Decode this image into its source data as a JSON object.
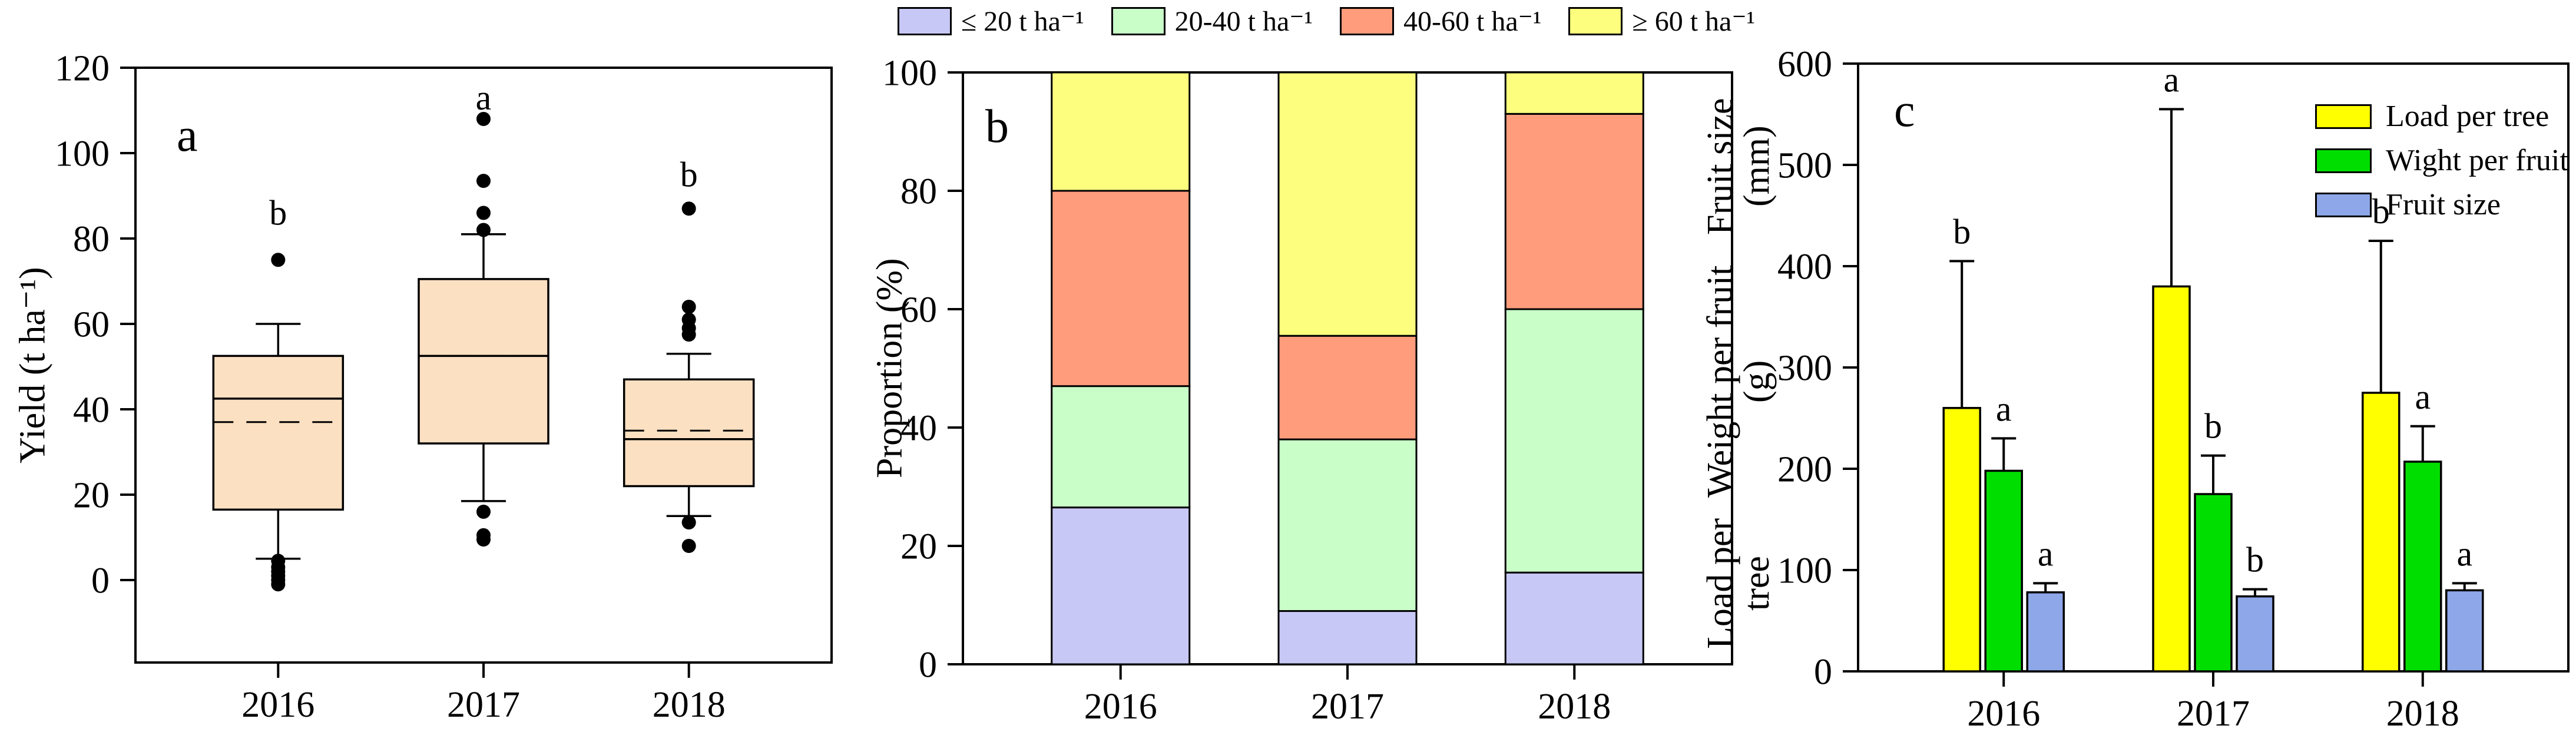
{
  "background": "#FFFFFF",
  "chart_data": [
    {
      "type": "boxplot",
      "panel_label": "a",
      "ylabel": "Yield (t ha⁻¹)",
      "ylim": [
        0,
        120
      ],
      "ytick_step": 20,
      "categories": [
        "2016",
        "2017",
        "2018"
      ],
      "box_fill": "#FCE0C2",
      "box_edge": "#000000",
      "boxes": [
        {
          "category": "2016",
          "whisker_low": 5,
          "q1": 16.5,
          "median": 42.5,
          "mean": 37,
          "q3": 52.5,
          "whisker_high": 60,
          "outliers_high": [
            75
          ],
          "outliers_low": [
            4.5,
            3,
            2,
            1,
            0,
            -1
          ],
          "sig": "b",
          "sig_y": 86
        },
        {
          "category": "2017",
          "whisker_low": 18.5,
          "q1": 32,
          "median": 52.5,
          "mean": 52.5,
          "q3": 70.5,
          "whisker_high": 81,
          "outliers_high": [
            82,
            86,
            93.5,
            108
          ],
          "outliers_low": [
            16,
            10.5,
            9.5
          ],
          "sig": "a",
          "sig_y": 113
        },
        {
          "category": "2018",
          "whisker_low": 15,
          "q1": 22,
          "median": 33,
          "mean": 35,
          "q3": 47,
          "whisker_high": 53,
          "outliers_high": [
            57.5,
            59,
            61,
            64,
            87
          ],
          "outliers_low": [
            13.5,
            8
          ],
          "sig": "b",
          "sig_y": 95
        }
      ]
    },
    {
      "type": "stacked_bar",
      "panel_label": "b",
      "ylabel": "Proportion (%)",
      "ylim": [
        0,
        100
      ],
      "ytick_step": 20,
      "categories": [
        "2016",
        "2017",
        "2018"
      ],
      "series": [
        {
          "name": "≤ 20 t ha⁻¹",
          "color": "#C8C8F6",
          "values": [
            26.5,
            9,
            15.5
          ]
        },
        {
          "name": "20-40 t ha⁻¹",
          "color": "#C9FEC9",
          "values": [
            20.5,
            29,
            44.5
          ]
        },
        {
          "name": "40-60 t ha⁻¹",
          "color": "#FF9C7C",
          "values": [
            33,
            17.5,
            33
          ]
        },
        {
          "name": "≥ 60 t ha⁻¹",
          "color": "#FDFD7E",
          "values": [
            20,
            44.5,
            7
          ]
        }
      ]
    },
    {
      "type": "grouped_bar",
      "panel_label": "c",
      "ylabel_lines": [
        "Load per tree",
        "Weight per fruit (g)",
        "Fruit size (mm)"
      ],
      "ylim": [
        0,
        600
      ],
      "ytick_step": 100,
      "categories": [
        "2016",
        "2017",
        "2018"
      ],
      "series": [
        {
          "name": "Load per tree",
          "color": "#FFFF00",
          "values": [
            260,
            380,
            275
          ],
          "err_top": [
            405,
            555,
            425
          ],
          "sig": [
            "b",
            "a",
            "b"
          ]
        },
        {
          "name": "Wight per fruit",
          "color": "#00DE00",
          "values": [
            198,
            175,
            207
          ],
          "err_top": [
            230,
            213,
            242
          ],
          "sig": [
            "a",
            "b",
            "a"
          ]
        },
        {
          "name": "Fruit size",
          "color": "#8DA7E9",
          "values": [
            78,
            74,
            80
          ],
          "err_top": [
            87,
            81,
            87
          ],
          "sig": [
            "a",
            "b",
            "a"
          ]
        }
      ]
    }
  ]
}
